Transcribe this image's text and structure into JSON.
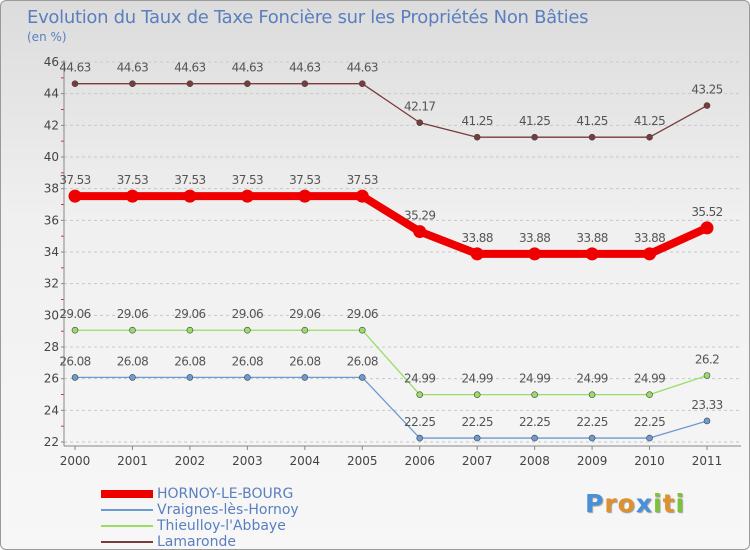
{
  "header": {
    "title": "Evolution du Taux de Taxe Foncière sur les Propriétés Non Bâties",
    "unit": "(en %)"
  },
  "brand": {
    "text": "Proxiti",
    "letters": [
      {
        "char": "P",
        "color": "#4a90d9"
      },
      {
        "char": "r",
        "color": "#e0902c"
      },
      {
        "char": "o",
        "color": "#e0902c"
      },
      {
        "char": "x",
        "color": "#4a90d9"
      },
      {
        "char": "i",
        "color": "#7cc23a"
      },
      {
        "char": "t",
        "color": "#e0902c"
      },
      {
        "char": "i",
        "color": "#7cc23a"
      }
    ]
  },
  "chart_data": {
    "type": "line",
    "title": "Evolution du Taux de Taxe Foncière sur les Propriétés Non Bâties",
    "ylabel": "(en %)",
    "xlabel": "",
    "categories": [
      "2000",
      "2001",
      "2002",
      "2003",
      "2004",
      "2005",
      "2006",
      "2007",
      "2008",
      "2009",
      "2010",
      "2011"
    ],
    "ylim": [
      22,
      46
    ],
    "yticks": [
      22,
      24,
      26,
      28,
      30,
      32,
      34,
      36,
      38,
      40,
      42,
      44,
      46
    ],
    "grid": "dashed horizontal",
    "series": [
      {
        "name": "HORNOY-LE-BOURG",
        "color": "#ee0000",
        "emphasis": true,
        "values": [
          37.53,
          37.53,
          37.53,
          37.53,
          37.53,
          37.53,
          35.29,
          33.88,
          33.88,
          33.88,
          33.88,
          35.52
        ],
        "labels": [
          "37.53",
          "37.53",
          "37.53",
          "37.53",
          "37.53",
          "37.53",
          "35.29",
          "33.88",
          "33.88",
          "33.88",
          "33.88",
          "35.52"
        ]
      },
      {
        "name": "Vraignes-lès-Hornoy",
        "color": "#6b9bd2",
        "emphasis": false,
        "values": [
          26.08,
          26.08,
          26.08,
          26.08,
          26.08,
          26.08,
          22.25,
          22.25,
          22.25,
          22.25,
          22.25,
          23.33
        ],
        "labels": [
          "26.08",
          "26.08",
          "26.08",
          "26.08",
          "26.08",
          "26.08",
          "22.25",
          "22.25",
          "22.25",
          "22.25",
          "22.25",
          "23.33"
        ]
      },
      {
        "name": "Thieulloy-l'Abbaye",
        "color": "#99dd66",
        "emphasis": false,
        "values": [
          29.06,
          29.06,
          29.06,
          29.06,
          29.06,
          29.06,
          24.99,
          24.99,
          24.99,
          24.99,
          24.99,
          26.2
        ],
        "labels": [
          "29.06",
          "29.06",
          "29.06",
          "29.06",
          "29.06",
          "29.06",
          "24.99",
          "24.99",
          "24.99",
          "24.99",
          "24.99",
          "26.2"
        ]
      },
      {
        "name": "Lamaronde",
        "color": "#7a3b3b",
        "emphasis": false,
        "values": [
          44.63,
          44.63,
          44.63,
          44.63,
          44.63,
          44.63,
          42.17,
          41.25,
          41.25,
          41.25,
          41.25,
          43.25
        ],
        "labels": [
          "44.63",
          "44.63",
          "44.63",
          "44.63",
          "44.63",
          "44.63",
          "42.17",
          "41.25",
          "41.25",
          "41.25",
          "41.25",
          "43.25"
        ]
      }
    ],
    "legend_position": "bottom-left"
  }
}
